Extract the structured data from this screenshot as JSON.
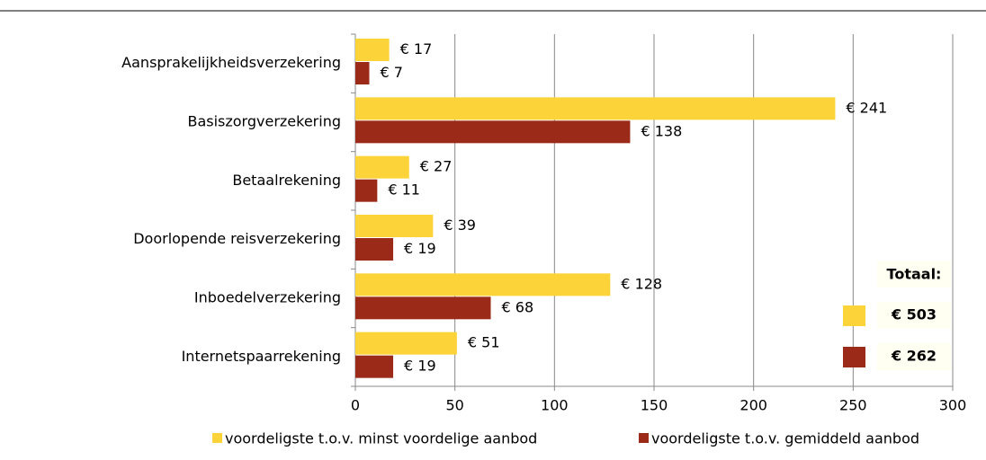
{
  "chart_data": {
    "type": "bar",
    "orientation": "horizontal",
    "categories": [
      "Aansprakelijkheidsverzekering",
      "Basiszorgverzekering",
      "Betaalrekening",
      "Doorlopende reisverzekering",
      "Inboedelverzekering",
      "Internetspaarrekening"
    ],
    "series": [
      {
        "name": "voordeligste t.o.v. minst voordelige aanbod",
        "color": "#fdd33a",
        "values": [
          17,
          241,
          27,
          39,
          128,
          51
        ],
        "value_labels": [
          "€ 17",
          "€ 241",
          "€ 27",
          "€ 39",
          "€ 128",
          "€ 51"
        ]
      },
      {
        "name": "voordeligste t.o.v. gemiddeld aanbod",
        "color": "#9b2a18",
        "values": [
          7,
          138,
          11,
          19,
          68,
          19
        ],
        "value_labels": [
          "€ 7",
          "€ 138",
          "€ 11",
          "€ 19",
          "€ 68",
          "€ 19"
        ]
      }
    ],
    "xlim": [
      0,
      300
    ],
    "xticks": [
      0,
      50,
      100,
      150,
      200,
      250,
      300
    ],
    "grid": true,
    "legend": "bottom",
    "annotations": [
      "Totaal:",
      "€ 503",
      "€ 262"
    ]
  }
}
